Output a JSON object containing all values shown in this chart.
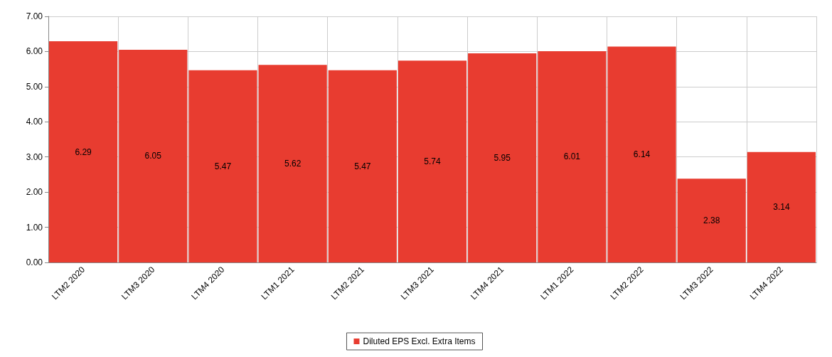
{
  "chart_data": {
    "type": "bar",
    "categories": [
      "LTM2 2020",
      "LTM3 2020",
      "LTM4 2020",
      "LTM1 2021",
      "LTM2 2021",
      "LTM3 2021",
      "LTM4 2021",
      "LTM1 2022",
      "LTM2 2022",
      "LTM3 2022",
      "LTM4 2022"
    ],
    "series": [
      {
        "name": "Diluted EPS Excl. Extra Items",
        "color": "#e83c30",
        "values": [
          6.29,
          6.05,
          5.47,
          5.62,
          5.47,
          5.74,
          5.95,
          6.01,
          6.14,
          2.38,
          3.14
        ]
      }
    ],
    "ylim": [
      0,
      7
    ],
    "yticks": [
      {
        "value": 0,
        "label": "0.00"
      },
      {
        "value": 1,
        "label": "1.00"
      },
      {
        "value": 2,
        "label": "2.00"
      },
      {
        "value": 3,
        "label": "3.00"
      },
      {
        "value": 4,
        "label": "4.00"
      },
      {
        "value": 5,
        "label": "5.00"
      },
      {
        "value": 6,
        "label": "6.00"
      },
      {
        "value": 7,
        "label": "7.00"
      }
    ],
    "grid": true,
    "legend": "bottom",
    "data_labels": true
  }
}
